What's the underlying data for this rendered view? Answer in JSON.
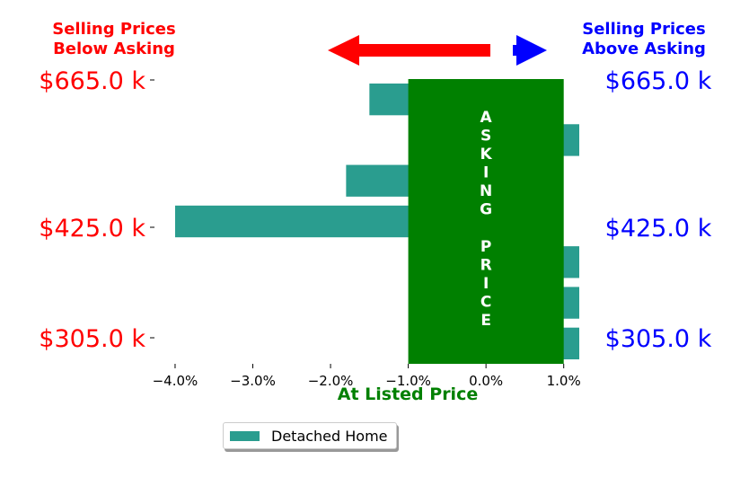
{
  "chart_data": {
    "type": "bar",
    "orientation": "horizontal",
    "series": [
      {
        "name": "Detached Home",
        "color": "#2a9d8f",
        "values": [
          -1.5,
          1.2,
          -1.8,
          -4.0,
          1.2,
          1.2,
          1.2
        ]
      }
    ],
    "xlim": [
      -4.3,
      1.2
    ],
    "x_ticks": [
      -4.0,
      -3.0,
      -2.0,
      -1.0,
      0.0,
      1.0
    ],
    "x_tick_labels": [
      "−4.0%",
      "−3.0%",
      "−2.0%",
      "−1.0%",
      "0.0%",
      "1.0%"
    ],
    "y_tick_labels_left": [
      "$665.0 k",
      "$425.0 k",
      "$305.0 k"
    ],
    "y_tick_labels_right": [
      "$665.0 k",
      "$425.0 k",
      "$305.0 k"
    ],
    "asking_price_band": {
      "from": -1.0,
      "to": 1.0,
      "color": "#008000",
      "label_top": "ASKING",
      "label_bottom": "PRICE"
    },
    "xlabel": "At Listed Price",
    "annotations": {
      "below_asking_line1": "Selling Prices",
      "below_asking_line2": "Below Asking",
      "above_asking_line1": "Selling Prices",
      "above_asking_line2": "Above Asking"
    },
    "colors": {
      "below": "#ff0000",
      "above": "#0000ff",
      "band": "#008000",
      "bar": "#2a9d8f"
    },
    "legend": {
      "entries": [
        "Detached Home"
      ],
      "placement": "lower-center"
    },
    "grid": false
  }
}
